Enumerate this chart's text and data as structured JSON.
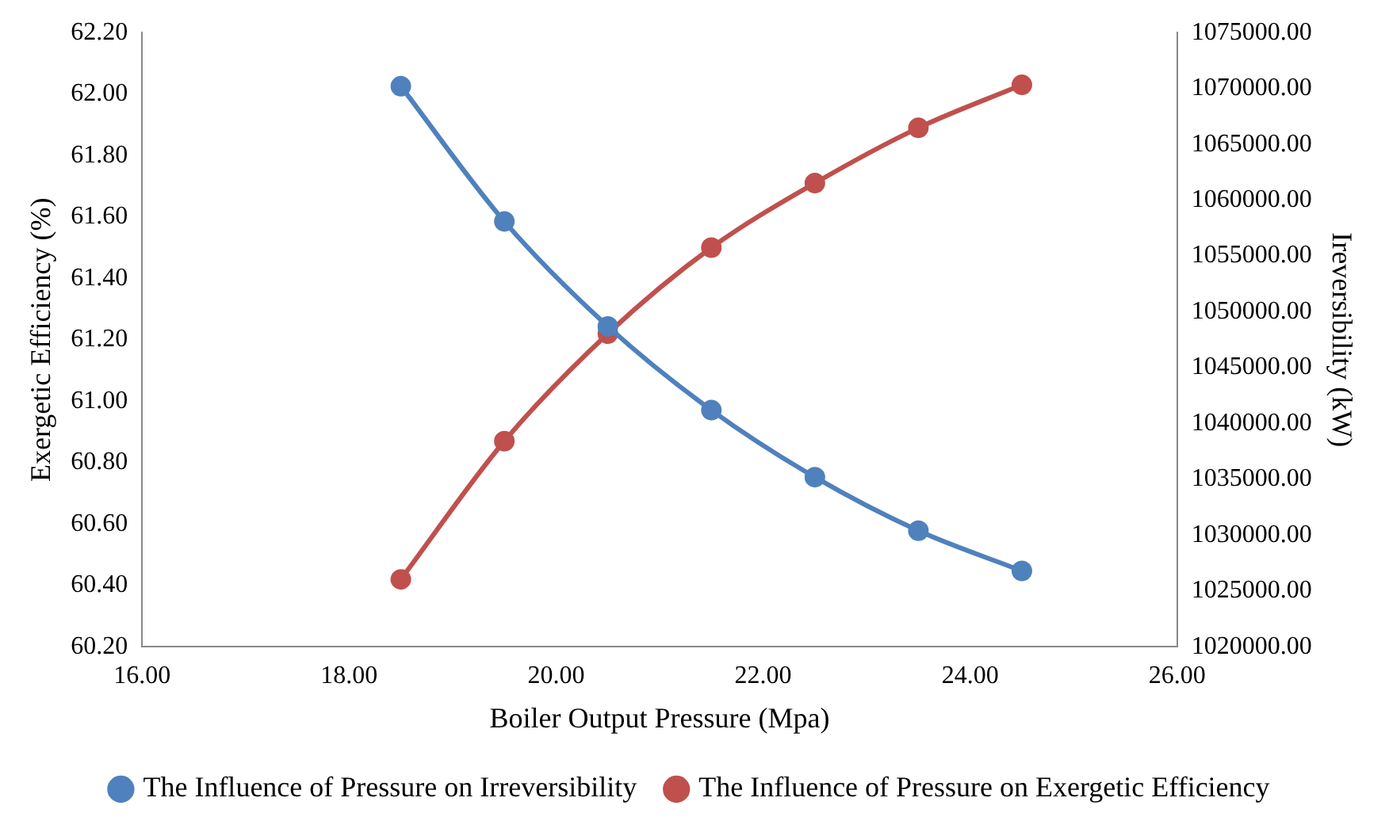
{
  "chart_data": {
    "type": "line",
    "xlabel": "Boiler Output Pressure (Mpa)",
    "ylabel": "Exergetic Efficiency (%)",
    "y2label": "Ireversibility (kW)",
    "x": [
      18.5,
      19.5,
      20.5,
      21.5,
      22.5,
      23.5,
      24.5
    ],
    "series": [
      {
        "name": "The Influence of Pressure on Exergetic Efficiency",
        "color": "#c0504d",
        "values": [
          60.42,
          60.87,
          61.22,
          61.5,
          61.71,
          61.89,
          62.03
        ]
      },
      {
        "name": "The Influence of Pressure on Irreversibility",
        "color": "#4f81bd",
        "axis": "y2",
        "values": [
          1070200,
          1058100,
          1048700,
          1041200,
          1035200,
          1030400,
          1026800
        ]
      }
    ],
    "xlim": [
      16,
      26
    ],
    "xticks": [
      {
        "value": 16,
        "label": "16.00"
      },
      {
        "value": 18,
        "label": "18.00"
      },
      {
        "value": 20,
        "label": "20.00"
      },
      {
        "value": 22,
        "label": "22.00"
      },
      {
        "value": 24,
        "label": "24.00"
      },
      {
        "value": 26,
        "label": "26.00"
      }
    ],
    "ylim": [
      60.2,
      62.2
    ],
    "yticks": [
      {
        "value": 60.2,
        "label": "60.20"
      },
      {
        "value": 60.4,
        "label": "60.40"
      },
      {
        "value": 60.6,
        "label": "60.60"
      },
      {
        "value": 60.8,
        "label": "60.80"
      },
      {
        "value": 61,
        "label": "61.00"
      },
      {
        "value": 61.2,
        "label": "61.20"
      },
      {
        "value": 61.4,
        "label": "61.40"
      },
      {
        "value": 61.6,
        "label": "61.60"
      },
      {
        "value": 61.8,
        "label": "61.80"
      },
      {
        "value": 62,
        "label": "62.00"
      },
      {
        "value": 62.2,
        "label": "62.20"
      }
    ],
    "y2lim": [
      1020000,
      1075000
    ],
    "y2ticks": [
      {
        "value": 1020000,
        "label": "1020000.00"
      },
      {
        "value": 1025000,
        "label": "1025000.00"
      },
      {
        "value": 1030000,
        "label": "1030000.00"
      },
      {
        "value": 1035000,
        "label": "1035000.00"
      },
      {
        "value": 1040000,
        "label": "1040000.00"
      },
      {
        "value": 1045000,
        "label": "1045000.00"
      },
      {
        "value": 1050000,
        "label": "1050000.00"
      },
      {
        "value": 1055000,
        "label": "1055000.00"
      },
      {
        "value": 1060000,
        "label": "1060000.00"
      },
      {
        "value": 1065000,
        "label": "1065000.00"
      },
      {
        "value": 1070000,
        "label": "1070000.00"
      },
      {
        "value": 1075000,
        "label": "1075000.00"
      }
    ],
    "grid": false,
    "legend": "bottom",
    "marker": "circle",
    "line_style": "solid"
  }
}
